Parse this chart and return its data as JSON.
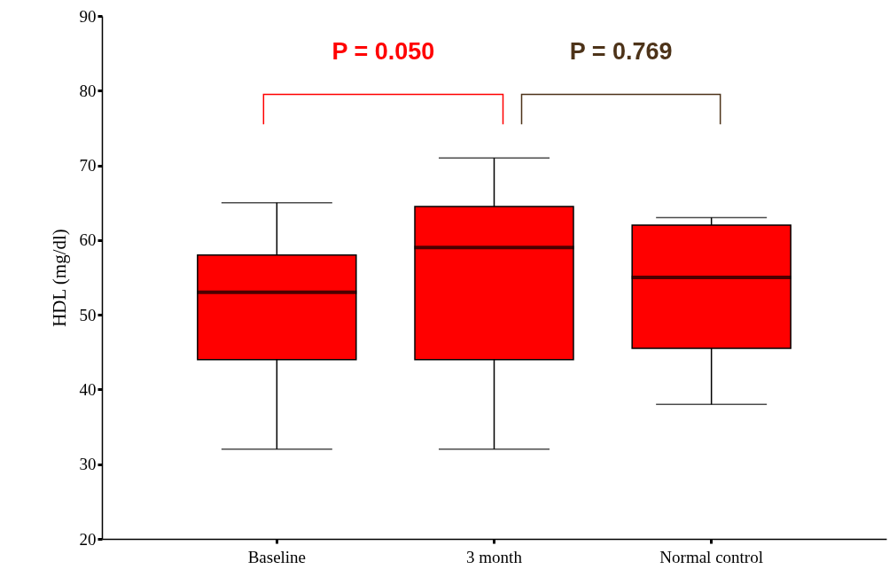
{
  "chart_data": {
    "type": "box",
    "ylabel": "HDL (mg/dl)",
    "categories": [
      "Baseline",
      "3 month",
      "Normal control"
    ],
    "series": [
      {
        "color": "#ff0000",
        "boxes": [
          {
            "low": 32,
            "q1": 44,
            "median": 53,
            "q3": 58,
            "high": 65
          },
          {
            "low": 32,
            "q1": 44,
            "median": 59,
            "q3": 64.5,
            "high": 71
          },
          {
            "low": 38,
            "q1": 45.5,
            "median": 55,
            "q3": 62,
            "high": 63
          }
        ]
      }
    ],
    "ylim": [
      20,
      90
    ],
    "yticks": [
      20,
      30,
      40,
      50,
      60,
      70,
      80,
      90
    ],
    "grid": false,
    "annotations": [
      "P = 0.050",
      "P = 0.769"
    ]
  }
}
